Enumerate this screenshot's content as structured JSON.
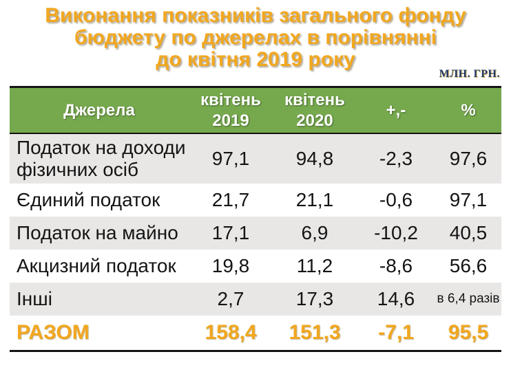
{
  "title": "Виконання показників загального фонду\nбюджету по джерелах в порівнянні\nдо квітня 2019 року",
  "unit_label": "МЛН. ГРН.",
  "colors": {
    "header_green": "#76a94d",
    "row_stripe": "#e9e7e6",
    "accent_orange": "#f2a71f",
    "unit_navy": "#1f3864"
  },
  "chart_data": {
    "type": "table",
    "title": "Виконання показників загального фонду бюджету по джерелах в порівнянні до квітня 2019 року",
    "unit": "млн. грн.",
    "columns": [
      "Джерела",
      "квітень 2019",
      "квітень 2020",
      "+,-",
      "%"
    ],
    "rows": [
      [
        "Податок на доходи фізичних осіб",
        "97,1",
        "94,8",
        "-2,3",
        "97,6"
      ],
      [
        "Єдиний податок",
        "21,7",
        "21,1",
        "-0,6",
        "97,1"
      ],
      [
        "Податок на майно",
        "17,1",
        "6,9",
        "-10,2",
        "40,5"
      ],
      [
        "Акцизний податок",
        "19,8",
        "11,2",
        "-8,6",
        "56,6"
      ],
      [
        "Інші",
        "2,7",
        "17,3",
        "14,6",
        "в 6,4 разів"
      ]
    ],
    "total_row": [
      "РАЗОМ",
      "158,4",
      "151,3",
      "-7,1",
      "95,5"
    ]
  },
  "table": {
    "columns": {
      "source": "Джерела",
      "apr2019": "квітень\n2019",
      "apr2020": "квітень\n2020",
      "delta": "+,-",
      "percent": "%"
    },
    "rows": [
      {
        "source": "Податок на доходи фізичних осіб",
        "apr2019": "97,1",
        "apr2020": "94,8",
        "delta": "-2,3",
        "percent": "97,6"
      },
      {
        "source": "Єдиний податок",
        "apr2019": "21,7",
        "apr2020": "21,1",
        "delta": "-0,6",
        "percent": "97,1"
      },
      {
        "source": "Податок на майно",
        "apr2019": "17,1",
        "apr2020": "6,9",
        "delta": "-10,2",
        "percent": "40,5"
      },
      {
        "source": "Акцизний податок",
        "apr2019": "19,8",
        "apr2020": "11,2",
        "delta": "-8,6",
        "percent": "56,6"
      },
      {
        "source": "Інші",
        "apr2019": "2,7",
        "apr2020": "17,3",
        "delta": "14,6",
        "percent": "в 6,4 разів"
      }
    ],
    "total": {
      "source": "РАЗОМ",
      "apr2019": "158,4",
      "apr2020": "151,3",
      "delta": "-7,1",
      "percent": "95,5"
    }
  }
}
